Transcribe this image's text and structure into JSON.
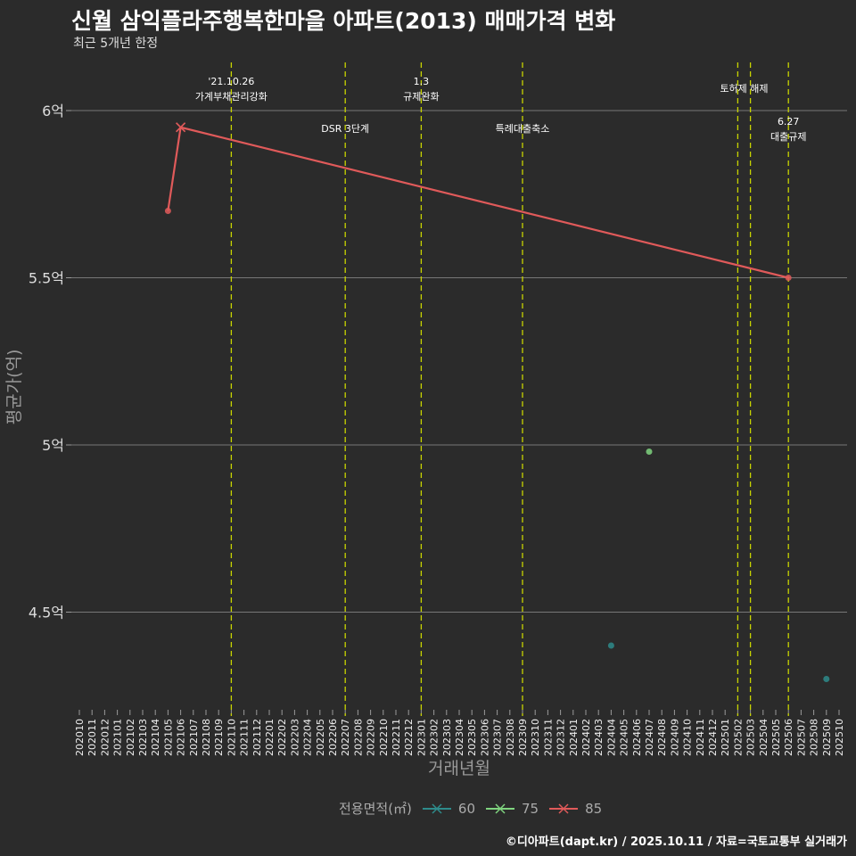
{
  "header": {
    "title": "신월 삼익플라주행복한마을 아파트(2013) 매매가격 변화",
    "subtitle": "최근 5개년 한정"
  },
  "caption": "©디아파트(dapt.kr) / 2025.10.11 / 자료=국토교통부 실거래가",
  "chart_data": {
    "type": "line",
    "title": "신월 삼익플라주행복한마을 아파트(2013) 매매가격 변화",
    "xlabel": "거래년월",
    "ylabel": "평균가(억)",
    "x_categories": [
      "202010",
      "202011",
      "202012",
      "202101",
      "202102",
      "202103",
      "202104",
      "202105",
      "202106",
      "202107",
      "202108",
      "202109",
      "202110",
      "202111",
      "202112",
      "202201",
      "202202",
      "202203",
      "202204",
      "202205",
      "202206",
      "202207",
      "202208",
      "202209",
      "202210",
      "202211",
      "202212",
      "202301",
      "202302",
      "202303",
      "202304",
      "202305",
      "202306",
      "202307",
      "202308",
      "202309",
      "202310",
      "202311",
      "202312",
      "202401",
      "202402",
      "202403",
      "202404",
      "202405",
      "202406",
      "202407",
      "202408",
      "202409",
      "202410",
      "202411",
      "202412",
      "202501",
      "202502",
      "202503",
      "202504",
      "202505",
      "202506",
      "202507",
      "202508",
      "202509",
      "202510"
    ],
    "ylim": [
      4.22,
      6.15
    ],
    "y_ticks": [
      {
        "value": 4.5,
        "label": "4.5억"
      },
      {
        "value": 5.0,
        "label": "5억"
      },
      {
        "value": 5.5,
        "label": "5.5억"
      },
      {
        "value": 6.0,
        "label": "6억"
      }
    ],
    "legend_title": "전용면적(㎡)",
    "legend_position": "bottom",
    "series": [
      {
        "name": "60",
        "color": "#2e8b8b",
        "points": [
          {
            "x": "202404",
            "y": 4.4
          },
          {
            "x": "202509",
            "y": 4.3
          }
        ]
      },
      {
        "name": "75",
        "color": "#7fd47f",
        "points": [
          {
            "x": "202407",
            "y": 4.98
          }
        ]
      },
      {
        "name": "85",
        "color": "#e05a5a",
        "points": [
          {
            "x": "202105",
            "y": 5.7
          },
          {
            "x": "202106",
            "y": 5.95
          },
          {
            "x": "202506",
            "y": 5.5
          }
        ]
      }
    ],
    "events": [
      {
        "x": "202110",
        "lines": [
          "'21.10.26",
          "가계부채관리강화"
        ],
        "row": "top"
      },
      {
        "x": "202207",
        "lines": [
          "DSR 3단계"
        ],
        "row": "mid"
      },
      {
        "x": "202301",
        "lines": [
          "1.3",
          "규제완화"
        ],
        "row": "top"
      },
      {
        "x": "202309",
        "lines": [
          "특례대출축소"
        ],
        "row": "mid"
      },
      {
        "x": "202502",
        "lines": [],
        "row": "none"
      },
      {
        "x": "202503",
        "lines": [
          "토허제 해제"
        ],
        "row": "topmid",
        "label_x": "202502"
      },
      {
        "x": "202506",
        "lines": [
          "6.27",
          "대출규제"
        ],
        "row": "low"
      }
    ],
    "event_color": "#c8d400",
    "grid": true
  }
}
